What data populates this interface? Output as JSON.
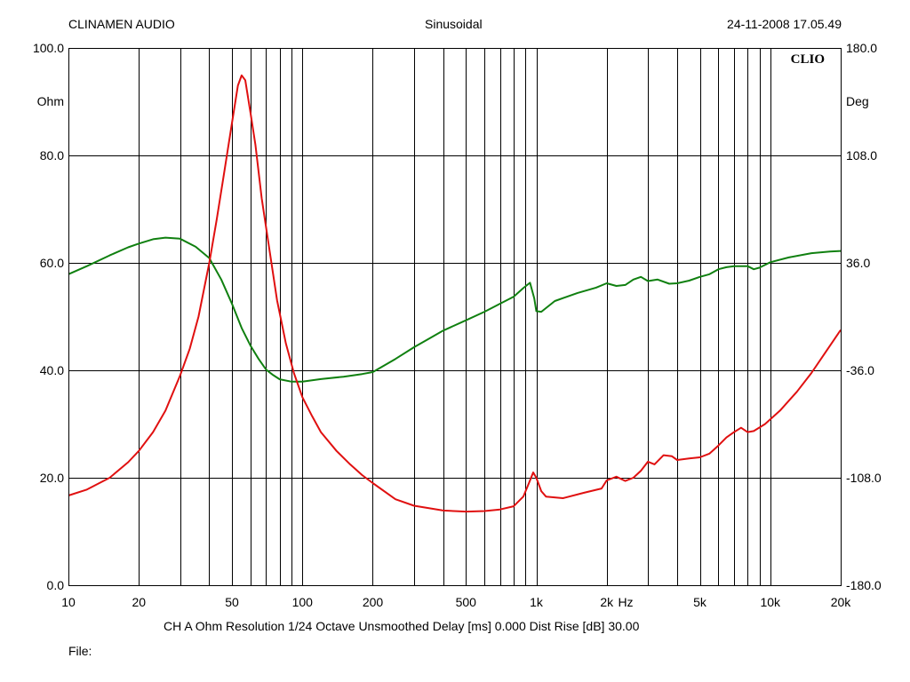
{
  "header": {
    "left": "CLINAMEN AUDIO",
    "center": "Sinusoidal",
    "right": "24-11-2008 17.05.49"
  },
  "footer": {
    "info": "CH A   Ohm   Resolution 1/24 Octave   Unsmoothed   Delay [ms] 0.000   Dist Rise [dB] 30.00",
    "file": "File:"
  },
  "chart_data": {
    "type": "line",
    "logo": "CLIO",
    "x_scale": "log",
    "xlim": [
      10,
      20000
    ],
    "x_ticks": [
      {
        "v": 10,
        "label": "10"
      },
      {
        "v": 20,
        "label": "20"
      },
      {
        "v": 50,
        "label": "50"
      },
      {
        "v": 100,
        "label": "100"
      },
      {
        "v": 200,
        "label": "200"
      },
      {
        "v": 500,
        "label": "500"
      },
      {
        "v": 1000,
        "label": "1k"
      },
      {
        "v": 2000,
        "label": "2k"
      },
      {
        "v": 5000,
        "label": "5k"
      },
      {
        "v": 10000,
        "label": "10k"
      },
      {
        "v": 20000,
        "label": "20k"
      }
    ],
    "x_unit_label": "Hz",
    "y_left": {
      "ylim": [
        0,
        100
      ],
      "unit": "Ohm",
      "ticks": [
        "100.0",
        "80.0",
        "60.0",
        "40.0",
        "20.0",
        "0.0"
      ]
    },
    "y_right": {
      "ylim": [
        -180,
        180
      ],
      "unit": "Deg",
      "ticks": [
        "180.0",
        "108.0",
        "36.0",
        "-36.0",
        "-108.0",
        "-180.0"
      ]
    },
    "grid": true,
    "series": [
      {
        "color": "#e01010",
        "axis": "left",
        "points": [
          [
            10,
            16.7
          ],
          [
            12,
            17.8
          ],
          [
            15,
            20.0
          ],
          [
            18,
            22.9
          ],
          [
            20,
            25.0
          ],
          [
            23,
            28.5
          ],
          [
            26,
            32.5
          ],
          [
            30,
            39.0
          ],
          [
            33,
            44.0
          ],
          [
            36,
            50.0
          ],
          [
            40,
            60.0
          ],
          [
            43,
            68.0
          ],
          [
            46,
            76.0
          ],
          [
            50,
            86.0
          ],
          [
            53,
            93.0
          ],
          [
            55,
            94.9
          ],
          [
            57,
            94.0
          ],
          [
            60,
            88.0
          ],
          [
            63,
            82.0
          ],
          [
            67,
            72.0
          ],
          [
            72,
            63.0
          ],
          [
            78,
            53.0
          ],
          [
            85,
            45.0
          ],
          [
            92,
            39.5
          ],
          [
            100,
            35.0
          ],
          [
            110,
            31.5
          ],
          [
            120,
            28.5
          ],
          [
            140,
            25.0
          ],
          [
            160,
            22.5
          ],
          [
            180,
            20.5
          ],
          [
            200,
            19.0
          ],
          [
            250,
            16.0
          ],
          [
            300,
            14.8
          ],
          [
            400,
            13.9
          ],
          [
            500,
            13.7
          ],
          [
            600,
            13.8
          ],
          [
            700,
            14.1
          ],
          [
            800,
            14.7
          ],
          [
            880,
            16.5
          ],
          [
            930,
            19.0
          ],
          [
            970,
            21.0
          ],
          [
            1000,
            20.0
          ],
          [
            1050,
            17.5
          ],
          [
            1100,
            16.5
          ],
          [
            1300,
            16.2
          ],
          [
            1600,
            17.2
          ],
          [
            1900,
            18.0
          ],
          [
            2000,
            19.5
          ],
          [
            2200,
            20.2
          ],
          [
            2400,
            19.4
          ],
          [
            2600,
            20.0
          ],
          [
            2800,
            21.3
          ],
          [
            3000,
            23.0
          ],
          [
            3200,
            22.5
          ],
          [
            3500,
            24.2
          ],
          [
            3800,
            24.0
          ],
          [
            4000,
            23.3
          ],
          [
            4500,
            23.6
          ],
          [
            5000,
            23.8
          ],
          [
            5500,
            24.5
          ],
          [
            6000,
            26.0
          ],
          [
            6500,
            27.5
          ],
          [
            7000,
            28.5
          ],
          [
            7500,
            29.3
          ],
          [
            8000,
            28.5
          ],
          [
            8500,
            28.7
          ],
          [
            9500,
            30.0
          ],
          [
            11000,
            32.5
          ],
          [
            13000,
            36.0
          ],
          [
            15000,
            39.5
          ],
          [
            17000,
            43.0
          ],
          [
            20000,
            47.5
          ]
        ]
      },
      {
        "color": "#108010",
        "axis": "right",
        "points": [
          [
            10,
            28.4
          ],
          [
            12,
            33.8
          ],
          [
            15,
            41.0
          ],
          [
            18,
            46.4
          ],
          [
            20,
            48.9
          ],
          [
            23,
            51.8
          ],
          [
            26,
            52.9
          ],
          [
            30,
            52.2
          ],
          [
            35,
            46.8
          ],
          [
            40,
            39.2
          ],
          [
            45,
            24.8
          ],
          [
            50,
            8.6
          ],
          [
            55,
            -7.6
          ],
          [
            60,
            -19.4
          ],
          [
            65,
            -28.4
          ],
          [
            70,
            -35.6
          ],
          [
            75,
            -39.2
          ],
          [
            80,
            -42.0
          ],
          [
            90,
            -43.6
          ],
          [
            100,
            -43.6
          ],
          [
            120,
            -41.9
          ],
          [
            150,
            -40.3
          ],
          [
            180,
            -38.5
          ],
          [
            200,
            -37.2
          ],
          [
            250,
            -28.4
          ],
          [
            300,
            -20.5
          ],
          [
            400,
            -9.4
          ],
          [
            500,
            -2.5
          ],
          [
            600,
            3.2
          ],
          [
            700,
            8.6
          ],
          [
            800,
            13.3
          ],
          [
            880,
            19.1
          ],
          [
            940,
            22.7
          ],
          [
            980,
            12.2
          ],
          [
            1000,
            3.6
          ],
          [
            1050,
            3.2
          ],
          [
            1200,
            10.4
          ],
          [
            1500,
            15.8
          ],
          [
            1800,
            19.4
          ],
          [
            2000,
            22.3
          ],
          [
            2200,
            20.5
          ],
          [
            2400,
            21.2
          ],
          [
            2600,
            24.8
          ],
          [
            2800,
            26.6
          ],
          [
            3000,
            23.8
          ],
          [
            3300,
            24.8
          ],
          [
            3700,
            22.0
          ],
          [
            4000,
            22.3
          ],
          [
            4500,
            24.1
          ],
          [
            5000,
            26.6
          ],
          [
            5500,
            28.4
          ],
          [
            6000,
            31.7
          ],
          [
            6500,
            33.1
          ],
          [
            7000,
            33.8
          ],
          [
            8000,
            33.8
          ],
          [
            8500,
            31.7
          ],
          [
            9000,
            32.8
          ],
          [
            10000,
            36.4
          ],
          [
            12000,
            39.6
          ],
          [
            15000,
            42.5
          ],
          [
            18000,
            43.6
          ],
          [
            20000,
            44.0
          ]
        ]
      }
    ]
  }
}
